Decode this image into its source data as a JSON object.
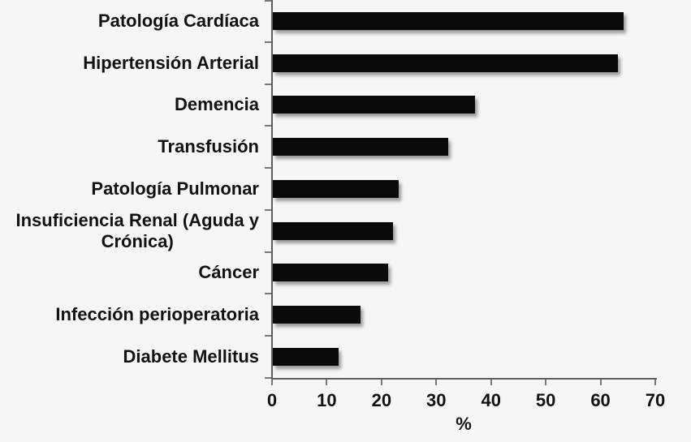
{
  "background": "#f6f6f6",
  "text_color": "#121212",
  "chart_data": {
    "type": "bar",
    "orientation": "horizontal",
    "title": "",
    "xlabel": "%",
    "ylabel": "",
    "categories": [
      "Patología Cardíaca",
      "Hipertensión Arterial",
      "Demencia",
      "Transfusión",
      "Patología Pulmonar",
      "Insuficiencia Renal (Aguda y\nCrónica)",
      "Cáncer",
      "Infección perioperatoria",
      "Diabete Mellitus"
    ],
    "values": [
      64,
      63,
      37,
      32,
      23,
      22,
      21,
      16,
      12
    ],
    "xlim": [
      0,
      70
    ],
    "xticks": [
      0,
      10,
      20,
      30,
      40,
      50,
      60,
      70
    ],
    "grid": false,
    "legend": null,
    "data_labels": false,
    "bar_color": "#0a0a0a",
    "axis_color": "#5f5f5f",
    "tick_color": "#787878"
  }
}
